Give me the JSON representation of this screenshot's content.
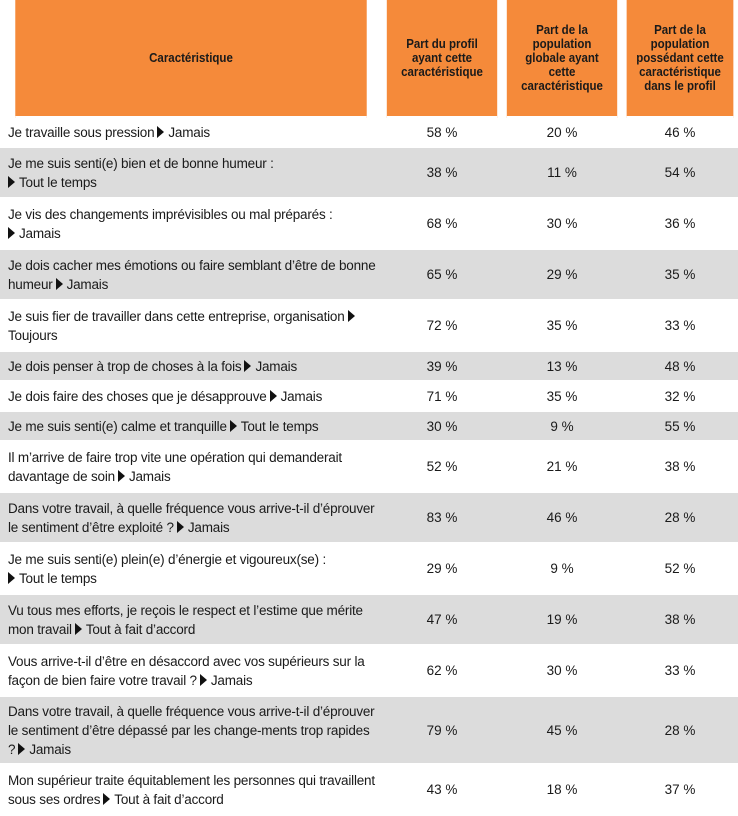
{
  "headers": {
    "characteristic": "Caractéristique",
    "profile_share": "Part du profil ayant cette caractéristique",
    "global_share": "Part de la population globale ayant cette caractéristique",
    "population_in_profile": "Part de la population possédant cette caractéristique dans le profil"
  },
  "arrow_icon": "triangle-right-icon",
  "colors": {
    "header": "#f58a3a",
    "row_alt": "#dcdcdc"
  },
  "rows": [
    {
      "prefix": "Je travaille sous pression",
      "answer": "Jamais",
      "profile": "58 %",
      "global": "20 %",
      "in_profile": "46 %"
    },
    {
      "prefix": "Je me suis senti(e) bien et de bonne humeur :",
      "answer": "Tout le temps",
      "profile": "38 %",
      "global": "11 %",
      "in_profile": "54 %"
    },
    {
      "prefix": "Je vis des changements imprévisibles ou mal préparés :",
      "answer": "Jamais",
      "profile": "68 %",
      "global": "30 %",
      "in_profile": "36 %"
    },
    {
      "prefix": "Je dois cacher mes émotions ou faire semblant d’être de bonne humeur",
      "answer": "Jamais",
      "profile": "65 %",
      "global": "29 %",
      "in_profile": "35 %"
    },
    {
      "prefix": "Je suis fier de travailler dans cette entreprise, organisation",
      "answer": "Toujours",
      "profile": "72 %",
      "global": "35 %",
      "in_profile": "33 %"
    },
    {
      "prefix": "Je dois penser à trop de choses à la fois",
      "answer": "Jamais",
      "profile": "39 %",
      "global": "13 %",
      "in_profile": "48 %"
    },
    {
      "prefix": "Je dois faire des choses que je désapprouve",
      "answer": "Jamais",
      "profile": "71 %",
      "global": "35 %",
      "in_profile": "32 %"
    },
    {
      "prefix": "Je me suis senti(e) calme et tranquille",
      "answer": "Tout le temps",
      "profile": "30 %",
      "global": "9 %",
      "in_profile": "55 %"
    },
    {
      "prefix": "Il m’arrive de faire trop vite une opération qui demanderait davantage de soin",
      "answer": "Jamais",
      "profile": "52 %",
      "global": "21 %",
      "in_profile": "38 %"
    },
    {
      "prefix": "Dans votre travail, à quelle fréquence vous arrive-t-il d’éprouver le sentiment d’être exploité ?",
      "answer": "Jamais",
      "profile": "83 %",
      "global": "46 %",
      "in_profile": "28 %"
    },
    {
      "prefix": "Je me suis senti(e) plein(e) d’énergie et vigoureux(se) :",
      "answer": "Tout le temps",
      "profile": "29 %",
      "global": "9 %",
      "in_profile": "52 %"
    },
    {
      "prefix": "Vu tous mes efforts, je reçois le respect et l’estime que mérite mon travail",
      "answer": "Tout à fait d’accord",
      "profile": "47 %",
      "global": "19 %",
      "in_profile": "38 %"
    },
    {
      "prefix": "Vous arrive-t-il d’être en désaccord avec vos supérieurs sur la façon de bien faire votre travail ?",
      "answer": "Jamais",
      "profile": "62 %",
      "global": "30 %",
      "in_profile": "33 %"
    },
    {
      "prefix": "Dans votre travail, à quelle fréquence vous arrive-t-il d’éprouver le sentiment d’être dépassé par les change-ments trop rapides ?",
      "answer": "Jamais",
      "profile": "79 %",
      "global": "45 %",
      "in_profile": "28 %"
    },
    {
      "prefix": "Mon supérieur traite équitablement les personnes qui travaillent sous ses ordres",
      "answer": "Tout à fait d’accord",
      "profile": "43 %",
      "global": "18 %",
      "in_profile": "37 %"
    }
  ]
}
